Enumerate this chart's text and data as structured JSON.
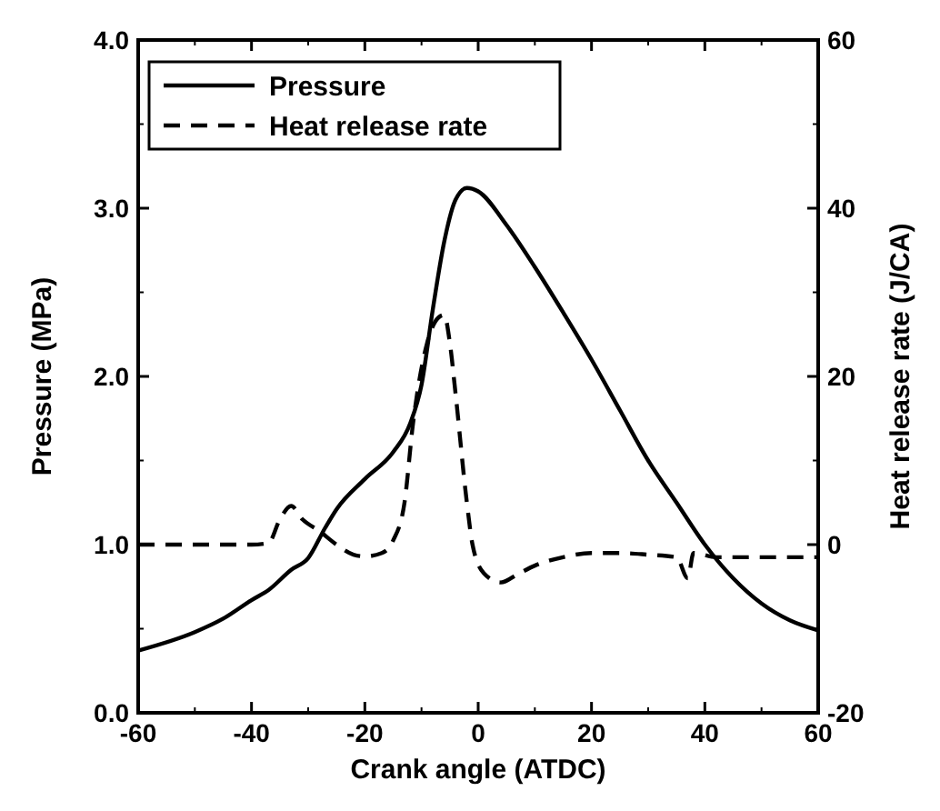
{
  "chart_data": {
    "type": "line",
    "xlabel": "Crank angle (ATDC)",
    "ylabel": "Pressure (MPa)",
    "y2label": "Heat release rate (J/CA)",
    "xlim": [
      -60,
      60
    ],
    "xticks": [
      -60,
      -40,
      -20,
      0,
      20,
      40,
      60
    ],
    "ylim": [
      0,
      4
    ],
    "yticks": [
      {
        "value": 0,
        "label": "0.0"
      },
      {
        "value": 1,
        "label": "1.0"
      },
      {
        "value": 2,
        "label": "2.0"
      },
      {
        "value": 3,
        "label": "3.0"
      },
      {
        "value": 4,
        "label": "4.0"
      }
    ],
    "y2lim": [
      -20,
      60
    ],
    "y2ticks": [
      -20,
      0,
      20,
      40,
      60
    ],
    "legend": "top left",
    "grid": false,
    "series": [
      {
        "name": "Pressure",
        "color": "#000000",
        "line_style": "solid",
        "x": [
          -60,
          -50,
          -45,
          -40,
          -37,
          -33,
          -30,
          -27,
          -25,
          -20,
          -15,
          -12,
          -10,
          -8,
          -6,
          -4,
          -2,
          0,
          5,
          10,
          15,
          20,
          25,
          30,
          35,
          40,
          45,
          50,
          55,
          60
        ],
        "values": [
          0.37,
          0.48,
          0.56,
          0.67,
          0.73,
          0.85,
          0.92,
          1.1,
          1.21,
          1.39,
          1.55,
          1.72,
          1.95,
          2.4,
          2.8,
          3.05,
          3.12,
          3.1,
          2.9,
          2.65,
          2.38,
          2.1,
          1.8,
          1.5,
          1.25,
          1.0,
          0.8,
          0.65,
          0.55,
          0.49
        ]
      },
      {
        "name": "Heat release rate",
        "color": "#000000",
        "line_style": "dashed",
        "axis": "y2",
        "x": [
          -60,
          -50,
          -45,
          -40,
          -37,
          -35,
          -33,
          -31,
          -28,
          -25,
          -22,
          -20,
          -17,
          -15,
          -13,
          -11.5,
          -9,
          -7,
          -6,
          -5,
          -4,
          -2,
          -1,
          1,
          4,
          7,
          10,
          15,
          20,
          25,
          30,
          35,
          37,
          38,
          42,
          45,
          50,
          55,
          60
        ],
        "values": [
          0,
          0,
          0,
          0,
          0.2,
          3,
          4.6,
          3,
          1.6,
          0,
          -1.2,
          -1.4,
          -1,
          0.5,
          5,
          14.4,
          24,
          27,
          27.3,
          24,
          18,
          5,
          0,
          -3.4,
          -4.5,
          -3.5,
          -2.5,
          -1.5,
          -1,
          -1,
          -1.2,
          -1.5,
          -4,
          -1,
          -1.5,
          -1.5,
          -1.5,
          -1.5,
          -1.5
        ]
      }
    ]
  }
}
